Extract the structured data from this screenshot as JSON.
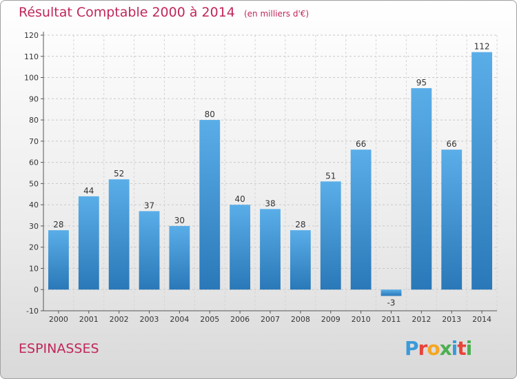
{
  "title": "Résultat Comptable 2000 à 2014",
  "subtitle": "(en milliers d'€)",
  "town": "ESPINASSES",
  "brand": {
    "letters": [
      "P",
      "r",
      "o",
      "x",
      "i",
      "t",
      "i"
    ],
    "colors": [
      "#3a9ad9",
      "#e8443a",
      "#f5a623",
      "#4caf50",
      "#3a9ad9",
      "#e8443a",
      "#4caf50"
    ]
  },
  "chart_data": {
    "type": "bar",
    "categories": [
      "2000",
      "2001",
      "2002",
      "2003",
      "2004",
      "2005",
      "2006",
      "2007",
      "2008",
      "2009",
      "2010",
      "2011",
      "2012",
      "2013",
      "2014"
    ],
    "values": [
      28,
      44,
      52,
      37,
      30,
      80,
      40,
      38,
      28,
      51,
      66,
      -3,
      95,
      66,
      112
    ],
    "ylim": [
      -10,
      120
    ],
    "yticks": [
      -10,
      0,
      10,
      20,
      30,
      40,
      50,
      60,
      70,
      80,
      90,
      100,
      110,
      120
    ],
    "grid": true,
    "bar_color": "#4a9fe0"
  }
}
